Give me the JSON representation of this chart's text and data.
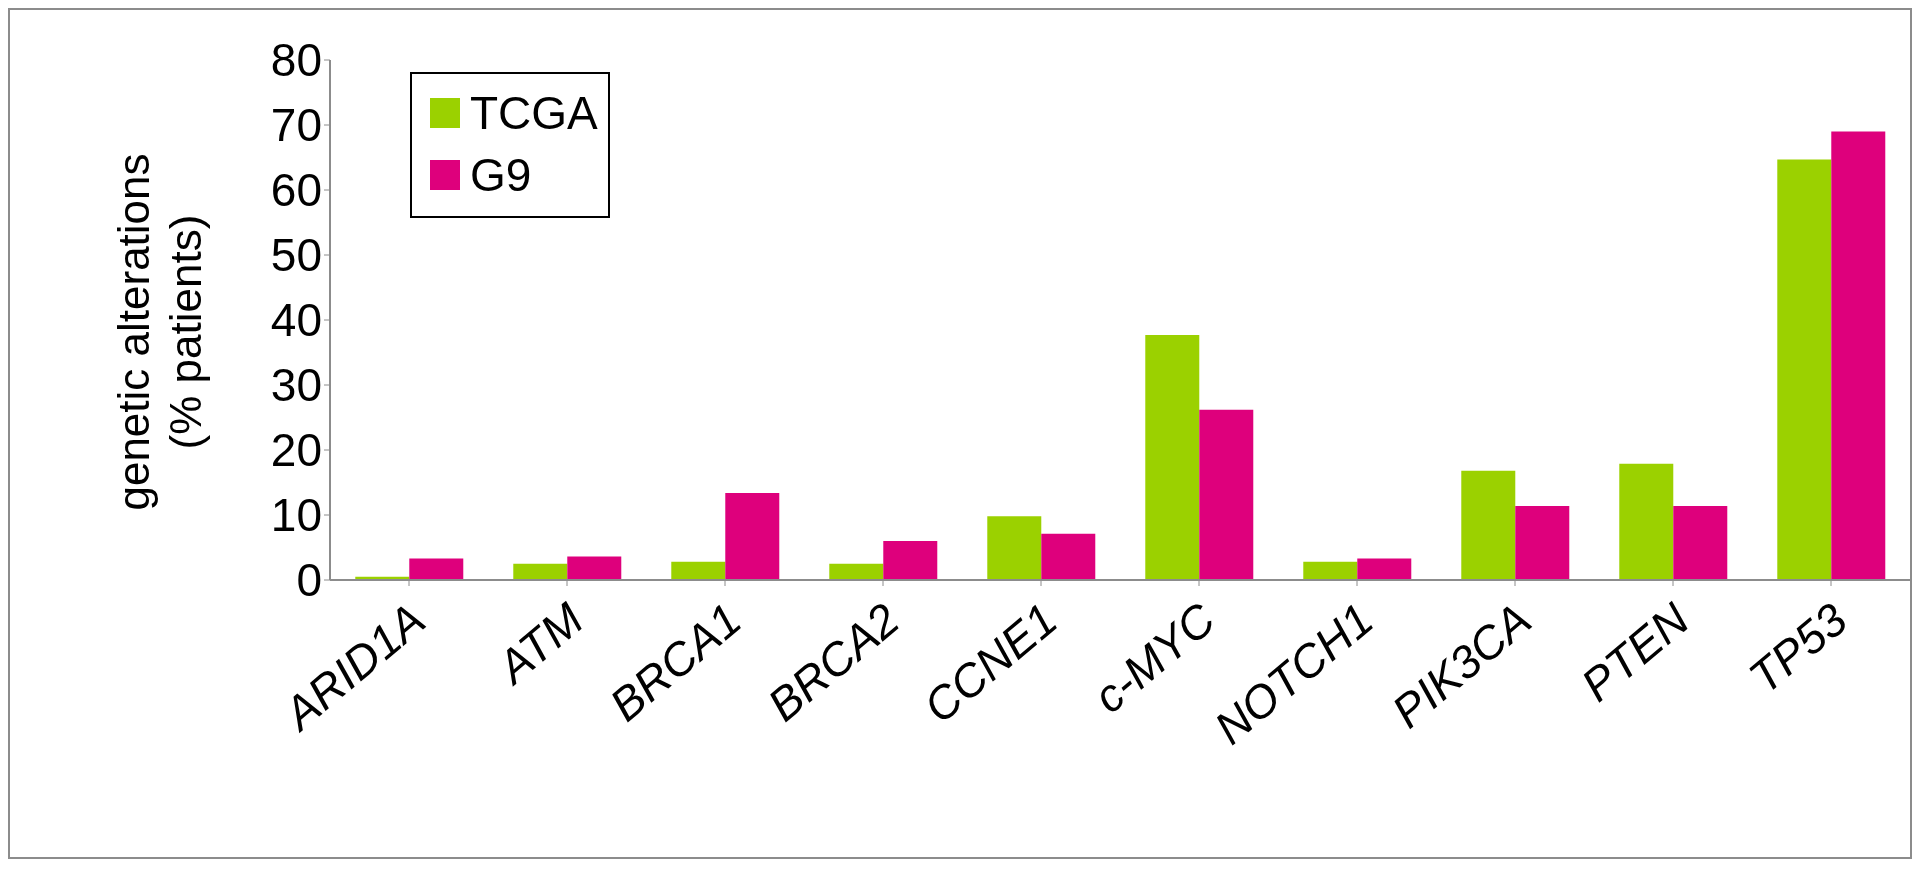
{
  "chart_data": {
    "type": "bar",
    "ylabel": "genetic alterations (% patients)",
    "categories": [
      "ARID1A",
      "ATM",
      "BRCA1",
      "BRCA2",
      "CCNE1",
      "c-MYC",
      "NOTCH1",
      "PIK3CA",
      "PTEN",
      "TP53"
    ],
    "series": [
      {
        "name": "TCGA",
        "color": "#9bd100",
        "values": [
          0.5,
          2.5,
          2.8,
          2.5,
          9.8,
          37.7,
          2.8,
          16.8,
          17.9,
          64.7
        ]
      },
      {
        "name": "G9",
        "color": "#de007c",
        "values": [
          3.3,
          3.6,
          13.4,
          6.0,
          7.1,
          26.2,
          3.3,
          11.4,
          11.4,
          69
        ]
      }
    ],
    "ylim": [
      0,
      80
    ],
    "yticks": [
      0,
      10,
      20,
      30,
      40,
      50,
      60,
      70,
      80
    ],
    "legend": "top left"
  }
}
